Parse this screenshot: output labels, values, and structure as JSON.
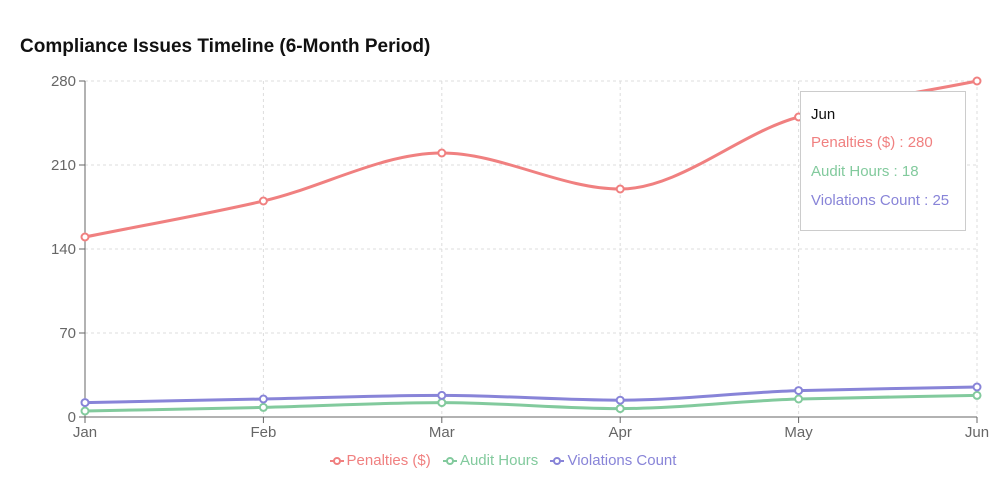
{
  "chart_data": {
    "type": "line",
    "title": "Compliance Issues Timeline (6-Month Period)",
    "categories": [
      "Jan",
      "Feb",
      "Mar",
      "Apr",
      "May",
      "Jun"
    ],
    "series": [
      {
        "name": "Penalties ($)",
        "color": "#f08080",
        "values": [
          150,
          180,
          220,
          190,
          250,
          280
        ]
      },
      {
        "name": "Audit Hours",
        "color": "#82ca9d",
        "values": [
          5,
          8,
          12,
          7,
          15,
          18
        ]
      },
      {
        "name": "Violations Count",
        "color": "#8884d8",
        "values": [
          12,
          15,
          18,
          14,
          22,
          25
        ]
      }
    ],
    "ylim": [
      0,
      280
    ],
    "yticks": [
      0,
      70,
      140,
      210,
      280
    ],
    "grid": true,
    "legend": "bottom-center",
    "tooltip": {
      "label": "Jun",
      "rows": [
        "Penalties ($) : 280",
        "Audit Hours : 18",
        "Violations Count : 25"
      ]
    }
  }
}
